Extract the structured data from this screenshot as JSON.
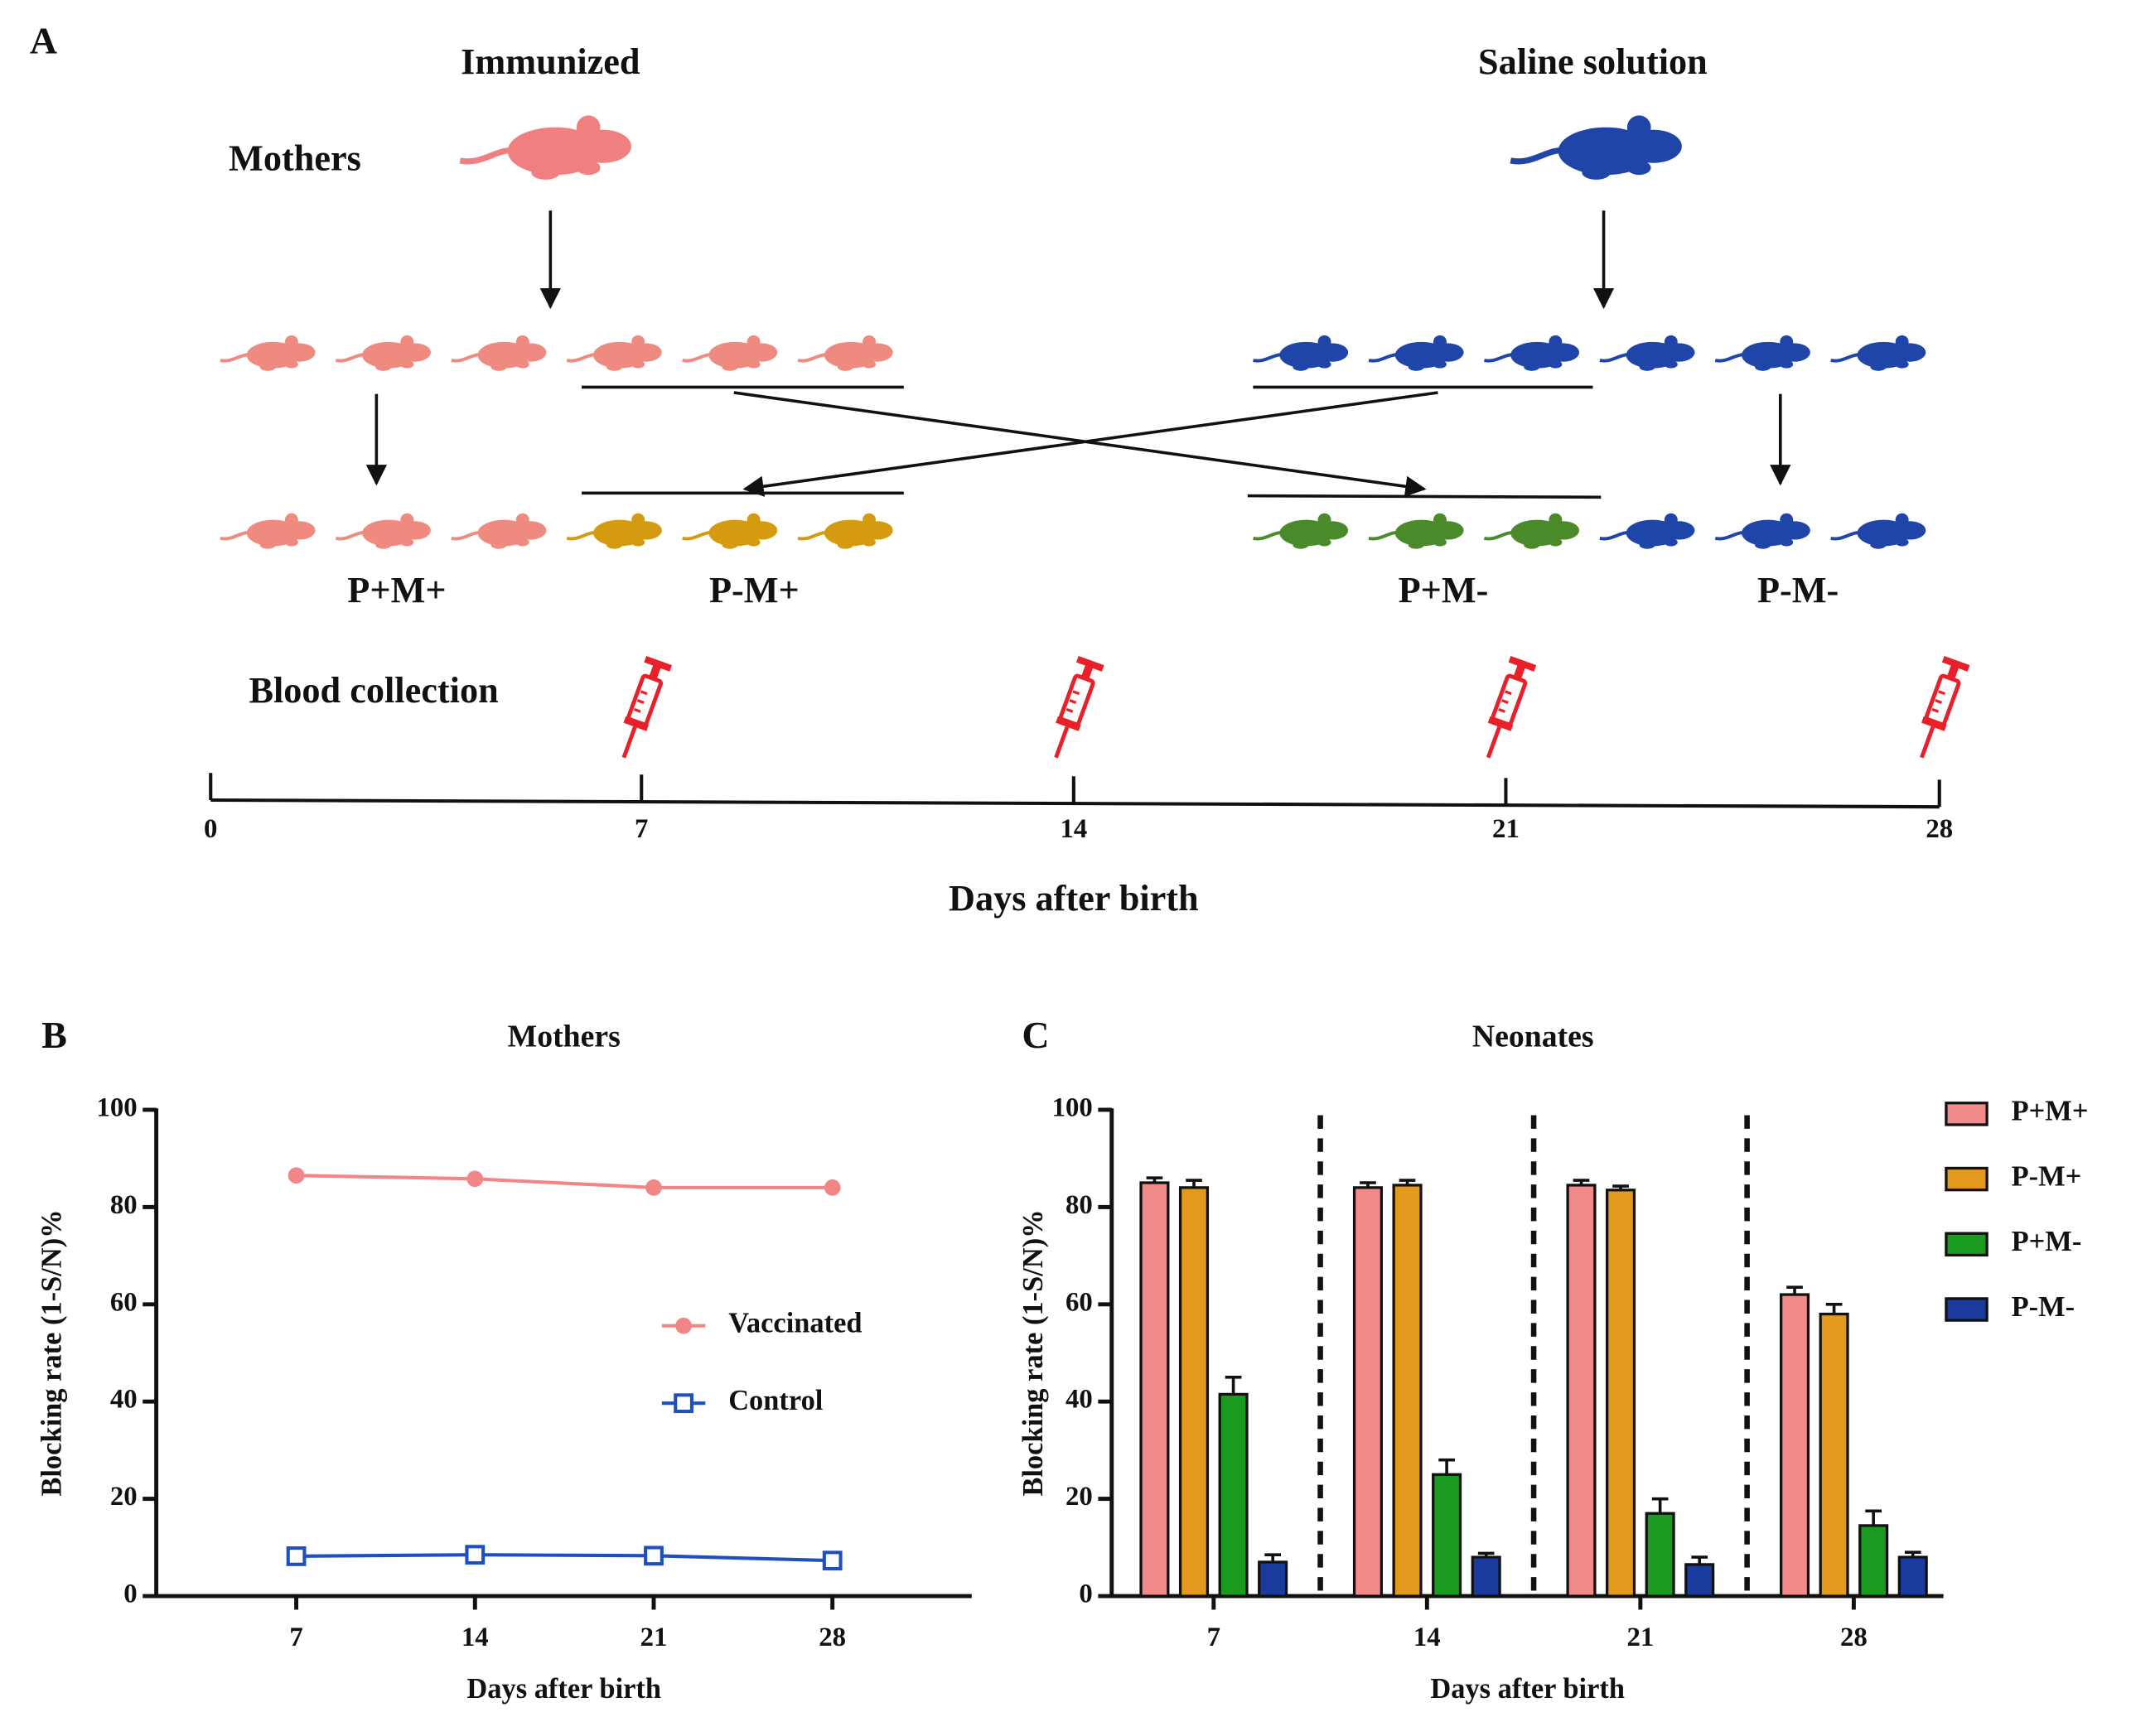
{
  "panel_a": {
    "letter": "A",
    "left_group": "Immunized",
    "right_group": "Saline solution",
    "mothers_label": "Mothers",
    "groups": [
      "P+M+",
      "P-M+",
      "P+M-",
      "P-M-"
    ],
    "blood_label": "Blood collection",
    "timeline_ticks": [
      "0",
      "7",
      "14",
      "21",
      "28"
    ],
    "timeline_label": "Days after birth"
  },
  "chart_data": [
    {
      "type": "line",
      "letter": "B",
      "title": "Mothers",
      "x_label": "Days after birth",
      "y_label": "Blocking rate (1-S/N)%",
      "categories": [
        "7",
        "14",
        "21",
        "28"
      ],
      "series": [
        {
          "name": "Vaccinated",
          "color": "#f28585",
          "marker": "circle",
          "values": [
            86.5,
            85.8,
            84,
            84
          ]
        },
        {
          "name": "Control",
          "color": "#1f4fbf",
          "marker": "square",
          "values": [
            8.2,
            8.5,
            8.3,
            7.3
          ]
        }
      ],
      "ylim": [
        0,
        100
      ],
      "yticks": [
        0,
        20,
        40,
        60,
        80,
        100
      ]
    },
    {
      "type": "bar",
      "letter": "C",
      "title": "Neonates",
      "x_label": "Days after birth",
      "y_label": "Blocking rate (1-S/N)%",
      "categories": [
        "7",
        "14",
        "21",
        "28"
      ],
      "series": [
        {
          "name": "P+M+",
          "color": "#f38a8a",
          "values": [
            85,
            84,
            84.5,
            62
          ],
          "errors": [
            1,
            1,
            1,
            1.5
          ]
        },
        {
          "name": "P-M+",
          "color": "#e39a1c",
          "values": [
            84,
            84.5,
            83.5,
            58
          ],
          "errors": [
            1.5,
            1,
            0.8,
            2
          ]
        },
        {
          "name": "P+M-",
          "color": "#1a9a1f",
          "values": [
            41.5,
            25,
            17,
            14.5
          ],
          "errors": [
            3.5,
            3,
            3,
            3
          ]
        },
        {
          "name": "P-M-",
          "color": "#1a3a9e",
          "values": [
            7,
            8,
            6.5,
            8
          ],
          "errors": [
            1.5,
            0.8,
            1.5,
            1
          ]
        }
      ],
      "ylim": [
        0,
        100
      ],
      "yticks": [
        0,
        20,
        40,
        60,
        80,
        100
      ]
    }
  ]
}
